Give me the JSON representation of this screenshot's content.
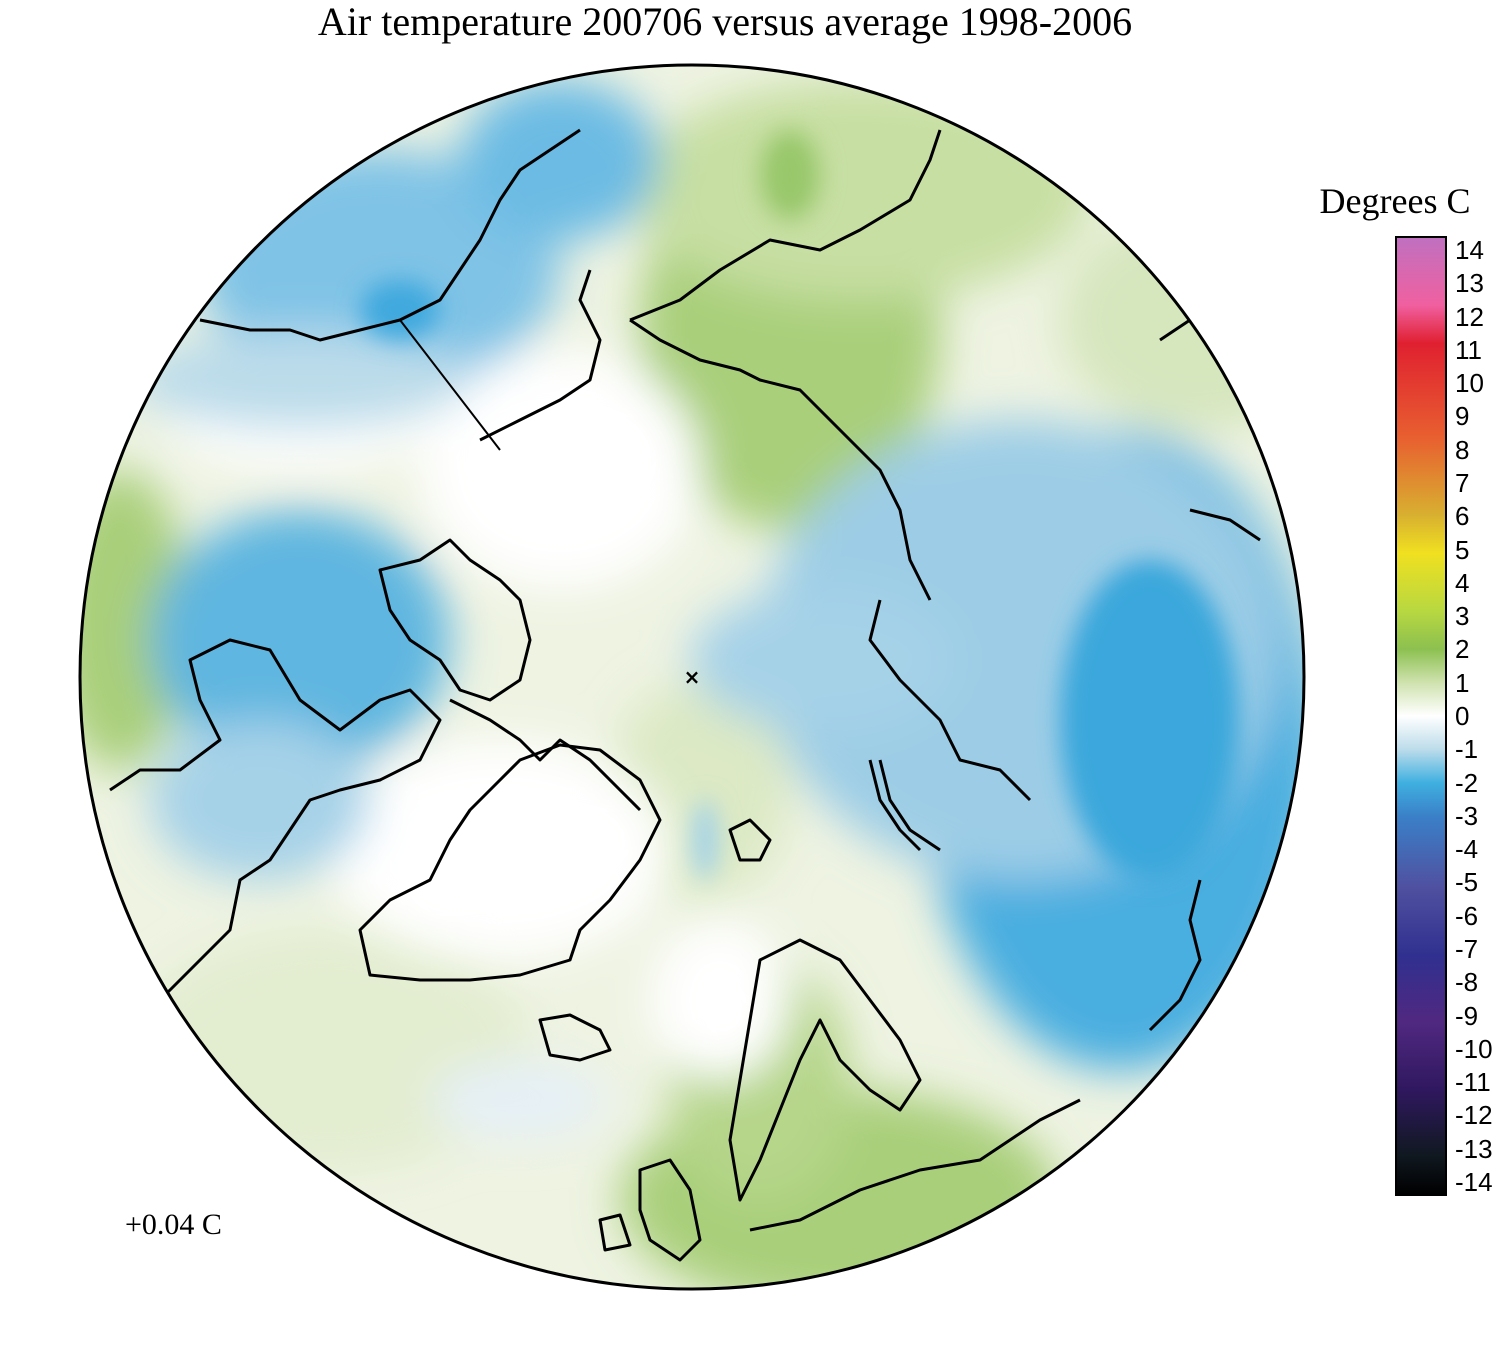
{
  "map": {
    "title": "Air temperature 200706 versus average 1998-2006",
    "projection": "north-polar-stereographic",
    "center_marker": "×",
    "anomaly_label": "+0.04 C"
  },
  "legend": {
    "units": "Degrees C",
    "ticks": [
      "14",
      "13",
      "12",
      "11",
      "10",
      "9",
      "8",
      "7",
      "6",
      "5",
      "4",
      "3",
      "2",
      "1",
      "0",
      "-1",
      "-2",
      "-3",
      "-4",
      "-5",
      "-6",
      "-7",
      "-8",
      "-9",
      "-10",
      "-11",
      "-12",
      "-13",
      "-14"
    ],
    "colors": {
      "plus14": "#c070c0",
      "plus12": "#f060a0",
      "plus11": "#e02030",
      "plus8": "#e86030",
      "plus6": "#d8b030",
      "plus5": "#f0e020",
      "plus3": "#b8d840",
      "plus2": "#8cc050",
      "plus1": "#cfe2ae",
      "zero": "#ffffff",
      "minus1": "#bcdcea",
      "minus2": "#3fb0e0",
      "minus3": "#3a80c8",
      "minus5": "#5050a0",
      "minus7": "#303090",
      "minus9": "#502880",
      "minus11": "#301860",
      "minus13": "#101820",
      "minus14": "#000000"
    }
  }
}
